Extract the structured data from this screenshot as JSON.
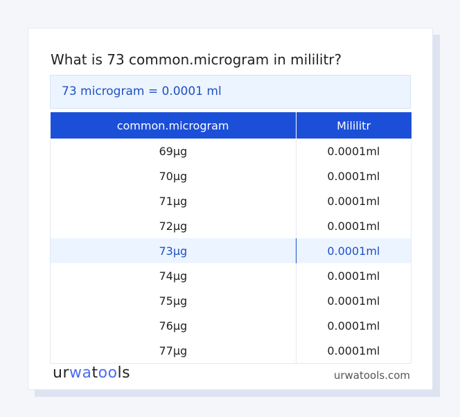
{
  "title": "What is 73 common.microgram in mililitr?",
  "result": "73 microgram = 0.0001 ml",
  "table": {
    "headers": [
      "common.microgram",
      "Mililitr"
    ],
    "rows": [
      [
        "69µg",
        "0.0001ml"
      ],
      [
        "70µg",
        "0.0001ml"
      ],
      [
        "71µg",
        "0.0001ml"
      ],
      [
        "72µg",
        "0.0001ml"
      ],
      [
        "73µg",
        "0.0001ml"
      ],
      [
        "74µg",
        "0.0001ml"
      ],
      [
        "75µg",
        "0.0001ml"
      ],
      [
        "76µg",
        "0.0001ml"
      ],
      [
        "77µg",
        "0.0001ml"
      ]
    ],
    "highlighted_row": 4
  },
  "footer": {
    "logo": "urwatools",
    "site": "urwatools.com"
  },
  "colors": {
    "accent": "#1c4fd8",
    "highlight_bg": "#ecf4ff"
  }
}
